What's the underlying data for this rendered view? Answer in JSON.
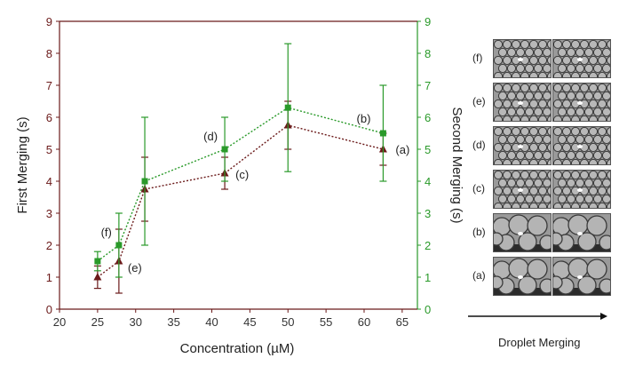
{
  "chart_data": {
    "type": "scatter",
    "xlabel": "Concentration (µM)",
    "ylabel_left": "First Merging (s)",
    "ylabel_right": "Second Merging (s)",
    "xlim": [
      20,
      67
    ],
    "ylim": [
      0,
      9
    ],
    "x_ticks": [
      20,
      25,
      30,
      35,
      40,
      45,
      50,
      55,
      60,
      65
    ],
    "y_ticks": [
      0,
      1,
      2,
      3,
      4,
      5,
      6,
      7,
      8,
      9
    ],
    "grid": false,
    "colors": {
      "first": "#6b1a1a",
      "second": "#2a9a2a",
      "first_axis": "#6b1a1a",
      "second_axis": "#2a9a2a"
    },
    "series": [
      {
        "axis": "left",
        "marker": "triangle",
        "x": [
          25,
          27.8,
          31.2,
          41.7,
          50,
          62.5
        ],
        "y": [
          1.0,
          1.5,
          3.75,
          4.25,
          5.75,
          5.0
        ],
        "err_low": [
          0.35,
          1.0,
          1.0,
          0.5,
          0.75,
          0.5
        ],
        "err_high": [
          0.35,
          1.0,
          1.0,
          0.5,
          0.75,
          0.5
        ]
      },
      {
        "axis": "right",
        "marker": "square",
        "x": [
          25,
          27.8,
          31.2,
          41.7,
          50,
          62.5
        ],
        "y": [
          1.5,
          2.0,
          4.0,
          5.0,
          6.3,
          5.5
        ],
        "err_low": [
          0.3,
          1.0,
          2.0,
          1.0,
          2.0,
          1.5
        ],
        "err_high": [
          0.3,
          1.0,
          2.0,
          1.0,
          2.0,
          1.5
        ]
      }
    ],
    "annotations": [
      {
        "text": "(a)",
        "x": 62.5,
        "y": 5.0
      },
      {
        "text": "(b)",
        "x": 62.5,
        "y": 5.5
      },
      {
        "text": "(c)",
        "x": 41.7,
        "y": 4.25
      },
      {
        "text": "(d)",
        "x": 41.7,
        "y": 5.0
      },
      {
        "text": "(e)",
        "x": 27.8,
        "y": 1.5
      },
      {
        "text": "(f)",
        "x": 27.8,
        "y": 2.0
      }
    ]
  },
  "micrographs": {
    "rows": [
      "(f)",
      "(e)",
      "(d)",
      "(c)",
      "(b)",
      "(a)"
    ],
    "footer_label": "Droplet Merging"
  }
}
